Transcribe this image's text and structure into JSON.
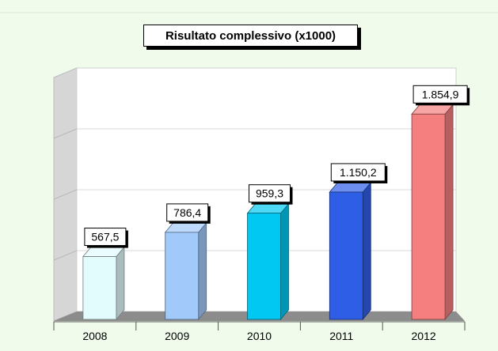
{
  "chart_data": {
    "type": "bar",
    "title": "Risultato complessivo (x1000)",
    "categories": [
      "2008",
      "2009",
      "2010",
      "2011",
      "2012"
    ],
    "values": [
      567.5,
      786.4,
      959.3,
      1150.2,
      1854.9
    ],
    "value_labels": [
      "567,5",
      "786,4",
      "959,3",
      "1.150,2",
      "1.854,9"
    ],
    "xlabel": "",
    "ylabel": "",
    "ylim": [
      0,
      2200
    ],
    "grid": true,
    "legend": "none",
    "style": "3d",
    "colors": {
      "background": "#f0fbec",
      "wall": "#ffffff",
      "side_wall": "#d6d6d6",
      "floor": "#8c8c8c",
      "gridline": "#d8d8d8",
      "bars": [
        "#e2fbfd",
        "#a1c9fa",
        "#00c8f2",
        "#2e5ee6",
        "#f57f7f"
      ]
    }
  }
}
